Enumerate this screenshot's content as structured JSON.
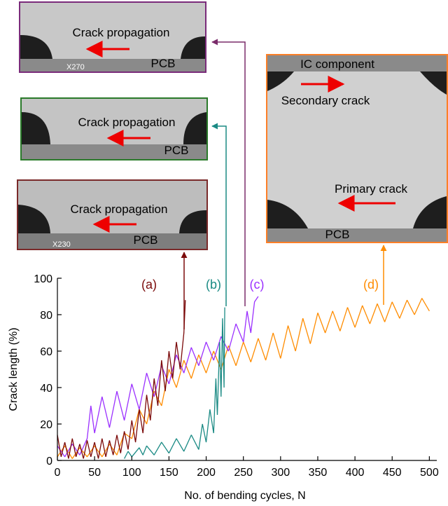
{
  "chart_data": {
    "type": "line",
    "x_label": "No. of bending cycles, N",
    "y_label": "Crack length (%)",
    "xlim": [
      0,
      510
    ],
    "xticks": [
      0,
      50,
      100,
      150,
      200,
      250,
      300,
      350,
      400,
      450,
      500
    ],
    "ylim": [
      0,
      100
    ],
    "yticks": [
      0,
      20,
      40,
      60,
      80,
      100
    ],
    "series": [
      {
        "name": "(d)",
        "color": "#ff8c00",
        "x": [
          0,
          10,
          20,
          30,
          40,
          50,
          60,
          70,
          80,
          90,
          100,
          110,
          120,
          130,
          140,
          150,
          160,
          170,
          180,
          190,
          200,
          210,
          220,
          230,
          240,
          250,
          260,
          270,
          280,
          290,
          300,
          310,
          320,
          330,
          340,
          350,
          360,
          370,
          380,
          390,
          400,
          410,
          420,
          430,
          440,
          450,
          460,
          470,
          480,
          490,
          500
        ],
        "values": [
          2,
          8,
          1,
          7,
          2,
          8,
          2,
          9,
          3,
          15,
          12,
          28,
          20,
          38,
          30,
          50,
          40,
          55,
          45,
          58,
          48,
          60,
          50,
          63,
          52,
          65,
          54,
          67,
          55,
          70,
          56,
          74,
          60,
          78,
          64,
          81,
          70,
          82,
          71,
          84,
          73,
          85,
          75,
          86,
          76,
          87,
          78,
          88,
          80,
          89,
          82
        ]
      },
      {
        "name": "(c)",
        "color": "#9b30ff",
        "x": [
          0,
          10,
          20,
          30,
          40,
          45,
          50,
          60,
          70,
          80,
          90,
          100,
          110,
          120,
          130,
          140,
          150,
          160,
          170,
          180,
          190,
          200,
          210,
          220,
          230,
          240,
          250,
          255,
          260,
          265,
          270
        ],
        "values": [
          8,
          2,
          9,
          3,
          12,
          30,
          15,
          35,
          18,
          38,
          22,
          42,
          28,
          48,
          35,
          52,
          42,
          58,
          48,
          62,
          52,
          65,
          55,
          68,
          60,
          75,
          65,
          82,
          70,
          87,
          90
        ]
      },
      {
        "name": "(a)",
        "color": "#7b0a0a",
        "x": [
          0,
          5,
          10,
          15,
          20,
          25,
          30,
          35,
          40,
          45,
          50,
          55,
          60,
          65,
          70,
          75,
          80,
          85,
          90,
          95,
          100,
          105,
          110,
          115,
          120,
          125,
          130,
          135,
          140,
          145,
          150,
          155,
          160,
          165,
          170,
          172
        ],
        "values": [
          14,
          2,
          10,
          1,
          12,
          2,
          9,
          1,
          11,
          2,
          10,
          1,
          12,
          2,
          11,
          3,
          14,
          4,
          16,
          6,
          22,
          10,
          28,
          15,
          36,
          22,
          45,
          30,
          55,
          38,
          60,
          45,
          65,
          50,
          70,
          88
        ]
      },
      {
        "name": "(b)",
        "color": "#1a8a84",
        "x": [
          90,
          95,
          100,
          110,
          115,
          120,
          130,
          140,
          150,
          160,
          170,
          180,
          190,
          195,
          200,
          205,
          210,
          213,
          215,
          218,
          220,
          222,
          224,
          225
        ],
        "values": [
          1,
          5,
          2,
          7,
          3,
          8,
          3,
          10,
          4,
          12,
          5,
          14,
          6,
          20,
          10,
          28,
          15,
          45,
          25,
          65,
          35,
          78,
          40,
          84
        ]
      }
    ]
  },
  "insets": [
    {
      "caption": "Crack propagation",
      "substrate": "PCB",
      "scale": "X270"
    },
    {
      "caption": "Crack propagation",
      "substrate": "PCB"
    },
    {
      "caption": "Crack propagation",
      "substrate": "PCB",
      "scale": "X230"
    },
    {
      "component": "IC component",
      "secondary": "Secondary crack",
      "primary": "Primary crack",
      "substrate": "PCB"
    }
  ]
}
